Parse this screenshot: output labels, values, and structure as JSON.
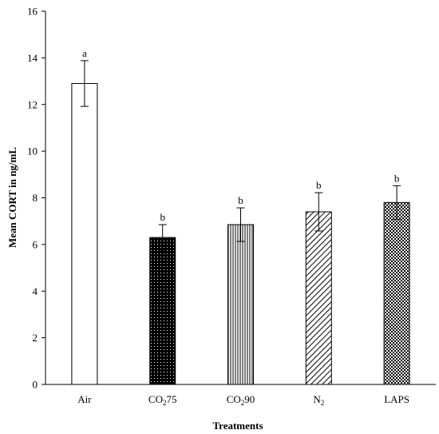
{
  "chart_data": {
    "type": "bar",
    "title": "",
    "xlabel": "Treatments",
    "ylabel": "Mean CORT in ng/mL",
    "ylim": [
      0,
      16
    ],
    "yticks": [
      0,
      2,
      4,
      6,
      8,
      10,
      12,
      14,
      16
    ],
    "grid": false,
    "legend": "none",
    "categories": [
      {
        "base": "Air",
        "sub": "",
        "suffix": ""
      },
      {
        "base": "CO",
        "sub": "2",
        "suffix": "75"
      },
      {
        "base": "CO",
        "sub": "2",
        "suffix": "90"
      },
      {
        "base": "N",
        "sub": "2",
        "suffix": ""
      },
      {
        "base": "LAPS",
        "sub": "",
        "suffix": ""
      }
    ],
    "values": [
      12.9,
      6.3,
      6.85,
      7.4,
      7.8
    ],
    "error": [
      0.98,
      0.55,
      0.72,
      0.82,
      0.72
    ],
    "significance": [
      "a",
      "b",
      "b",
      "b",
      "b"
    ],
    "patterns": [
      "white",
      "dotted-black",
      "vertical-lines",
      "diagonal-lines",
      "checkered"
    ]
  }
}
